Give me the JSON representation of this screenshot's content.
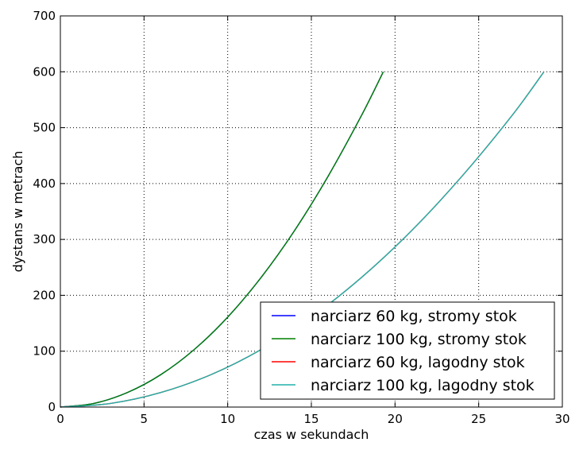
{
  "chart_data": {
    "type": "line",
    "xlabel": "czas w sekundach",
    "ylabel": "dystans w metrach",
    "xlim": [
      0,
      30
    ],
    "ylim": [
      0,
      700
    ],
    "xticks": [
      0,
      5,
      10,
      15,
      20,
      25,
      30
    ],
    "yticks": [
      0,
      100,
      200,
      300,
      400,
      500,
      600,
      700
    ],
    "grid": true,
    "legend_position": "lower-right",
    "series": [
      {
        "name": "narciarz 60 kg, stromy stok",
        "color": "#0000ff",
        "x": [
          0,
          2,
          4,
          6,
          8,
          10,
          12,
          14,
          16,
          18,
          19.3
        ],
        "y": [
          0,
          6.5,
          26,
          58,
          103,
          161,
          232,
          316,
          413,
          522,
          600
        ]
      },
      {
        "name": "narciarz 100 kg, stromy stok",
        "color": "#008000",
        "x": [
          0,
          2,
          4,
          6,
          8,
          10,
          12,
          14,
          16,
          18,
          19.3
        ],
        "y": [
          0,
          6.5,
          26,
          58,
          103,
          161,
          232,
          316,
          413,
          522,
          600
        ]
      },
      {
        "name": "narciarz 60 kg, lagodny stok",
        "color": "#ff0000",
        "x": [
          0,
          3,
          6,
          9,
          12,
          15,
          18,
          21,
          24,
          27,
          28.9
        ],
        "y": [
          0,
          6.5,
          26,
          58,
          103,
          161,
          232,
          316,
          413,
          522,
          600
        ]
      },
      {
        "name": "narciarz 100 kg, lagodny stok",
        "color": "#20b2aa",
        "x": [
          0,
          3,
          6,
          9,
          12,
          15,
          18,
          21,
          24,
          27,
          28.9
        ],
        "y": [
          0,
          6.5,
          26,
          58,
          103,
          161,
          232,
          316,
          413,
          522,
          600
        ]
      }
    ]
  }
}
